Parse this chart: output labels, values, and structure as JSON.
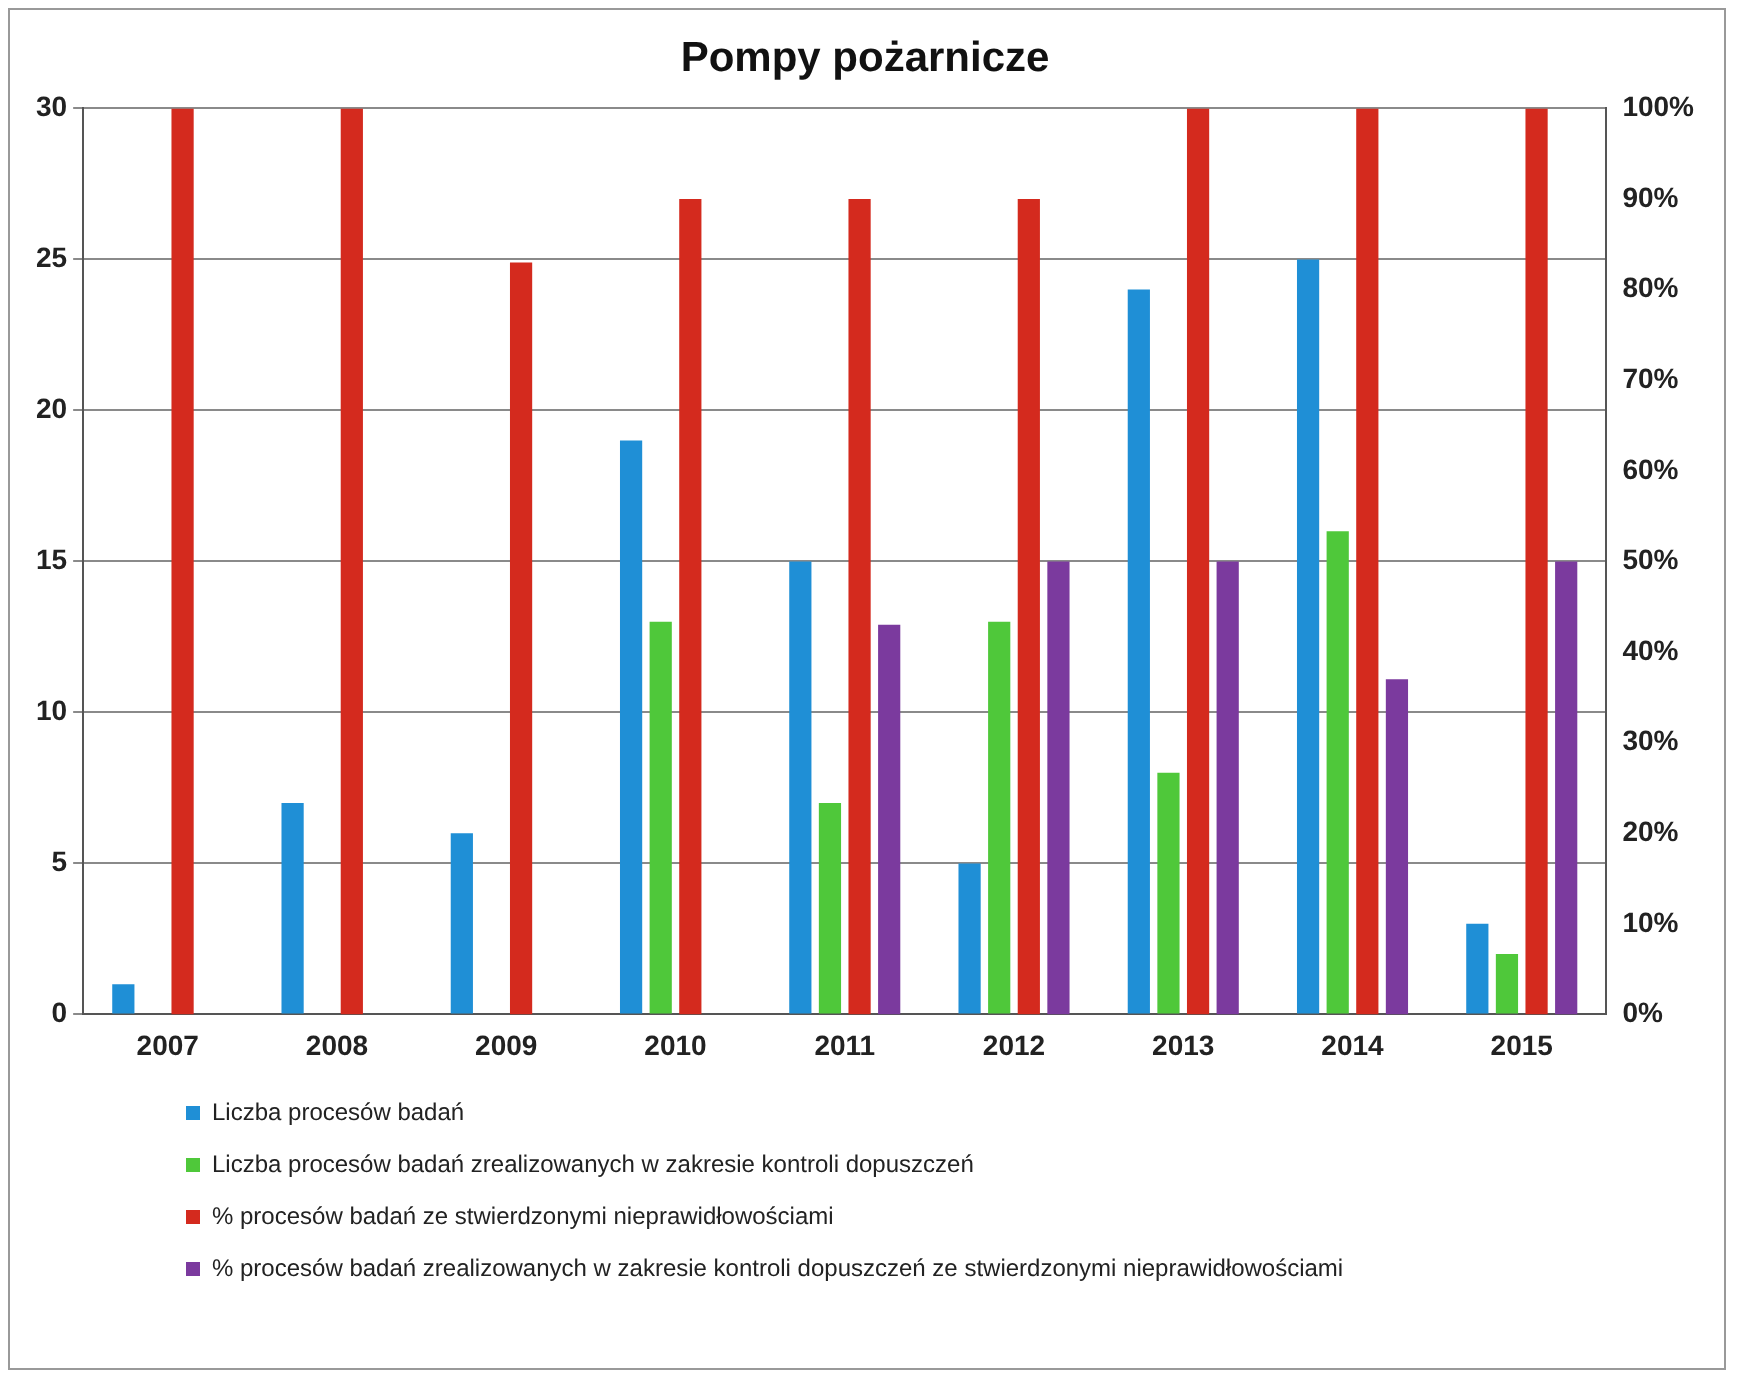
{
  "chart_data": {
    "type": "bar",
    "title": "Pompy pożarnicze",
    "categories": [
      "2007",
      "2008",
      "2009",
      "2010",
      "2011",
      "2012",
      "2013",
      "2014",
      "2015"
    ],
    "series": [
      {
        "name": "Liczba procesów badań",
        "color": "#1f8fd6",
        "values": [
          1,
          7,
          6,
          19,
          15,
          5,
          24,
          25,
          3
        ]
      },
      {
        "name": "Liczba procesów badań zrealizowanych w zakresie kontroli dopuszczeń",
        "color": "#4fc83a",
        "values": [
          0,
          0,
          0,
          13,
          7,
          13,
          8,
          16,
          2
        ]
      },
      {
        "name": "% procesów badań ze stwierdzonymi nieprawidłowościami",
        "color": "#d42a1e",
        "axis": "y2",
        "values": [
          100,
          100,
          83,
          90,
          90,
          90,
          100,
          100,
          100
        ]
      },
      {
        "name": "% procesów badań zrealizowanych w zakresie kontroli dopuszczeń ze stwierdzonymi nieprawidłowościami",
        "color": "#7b3a9e",
        "axis": "y2",
        "values": [
          0,
          0,
          0,
          0,
          43,
          50,
          50,
          37,
          50
        ]
      }
    ],
    "ylim": [
      0,
      30
    ],
    "yticks": [
      0,
      5,
      10,
      15,
      20,
      25,
      30
    ],
    "y2lim": [
      0,
      100
    ],
    "y2ticks": [
      {
        "value": 0,
        "label": "0%"
      },
      {
        "value": 10,
        "label": "10%"
      },
      {
        "value": 20,
        "label": "20%"
      },
      {
        "value": 30,
        "label": "30%"
      },
      {
        "value": 40,
        "label": "40%"
      },
      {
        "value": 50,
        "label": "50%"
      },
      {
        "value": 60,
        "label": "60%"
      },
      {
        "value": 70,
        "label": "70%"
      },
      {
        "value": 80,
        "label": "80%"
      },
      {
        "value": 90,
        "label": "90%"
      },
      {
        "value": 100,
        "label": "100%"
      }
    ],
    "grid": "y",
    "legend": "bottom"
  }
}
